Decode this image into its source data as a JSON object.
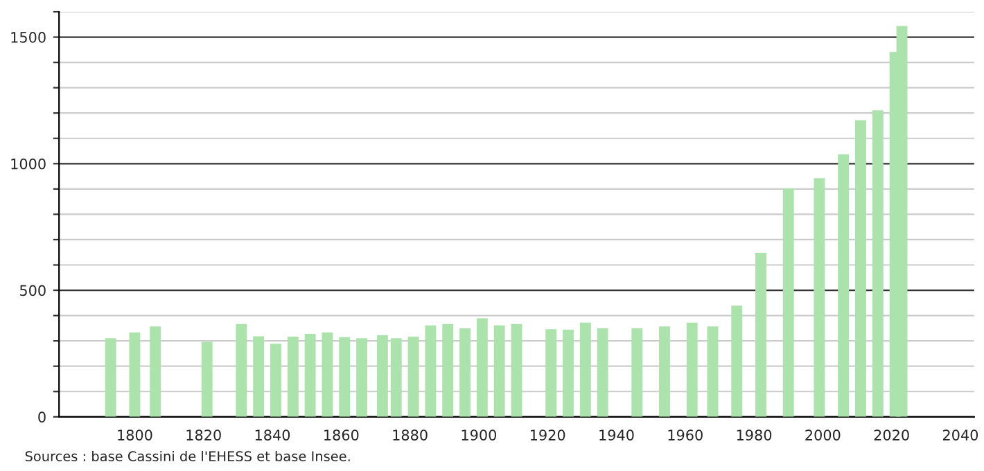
{
  "chart_data": {
    "type": "bar",
    "x": [
      1793,
      1800,
      1806,
      1821,
      1831,
      1836,
      1841,
      1846,
      1851,
      1856,
      1861,
      1866,
      1872,
      1876,
      1881,
      1886,
      1891,
      1896,
      1901,
      1906,
      1911,
      1921,
      1926,
      1931,
      1936,
      1946,
      1954,
      1962,
      1968,
      1975,
      1982,
      1990,
      1999,
      2006,
      2011,
      2016,
      2021,
      2023
    ],
    "values": [
      311,
      333,
      357,
      296,
      367,
      318,
      289,
      317,
      328,
      333,
      315,
      311,
      322,
      311,
      317,
      361,
      367,
      350,
      389,
      361,
      367,
      346,
      344,
      372,
      350,
      350,
      357,
      372,
      357,
      439,
      648,
      902,
      943,
      1037,
      1172,
      1211,
      1441,
      1544
    ],
    "color": "#ace3ac",
    "xlim": [
      1778,
      2044
    ],
    "xticks": [
      1800,
      1820,
      1840,
      1860,
      1880,
      1900,
      1920,
      1940,
      1960,
      1980,
      2000,
      2020,
      2040
    ],
    "ylim": [
      0,
      1600
    ],
    "yticks": [
      0,
      {
        "value": 100,
        "label": null
      },
      {
        "value": 200,
        "label": null
      },
      {
        "value": 300,
        "label": null
      },
      {
        "value": 400,
        "label": null
      },
      500,
      {
        "value": 600,
        "label": null
      },
      {
        "value": 700,
        "label": null
      },
      {
        "value": 800,
        "label": null
      },
      {
        "value": 900,
        "label": null
      },
      1000,
      {
        "value": 1100,
        "label": null
      },
      {
        "value": 1200,
        "label": null
      },
      {
        "value": 1300,
        "label": null
      },
      {
        "value": 1400,
        "label": null
      },
      1500,
      {
        "value": 1600,
        "label": null
      }
    ],
    "grid": "y",
    "annotations": [
      "Sources : base Cassini de l'EHESS et base Insee."
    ]
  }
}
